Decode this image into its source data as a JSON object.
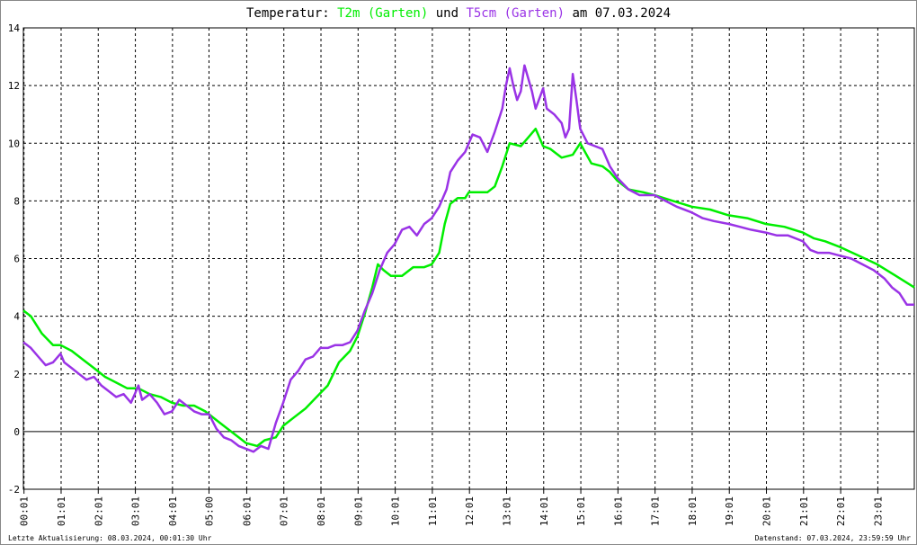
{
  "title": {
    "prefix": "Temperatur: ",
    "series1": "T2m (Garten)",
    "mid": " und ",
    "series2": "T5cm (Garten)",
    "suffix": " am 07.03.2024"
  },
  "colors": {
    "t2m": "#00ee00",
    "t5cm": "#9a33e6",
    "grid": "#000000",
    "zero": "#000000"
  },
  "footer": {
    "left": "Letzte Aktualisierung: 08.03.2024, 00:01:30 Uhr",
    "right": "Datenstand: 07.03.2024, 23:59:59 Uhr"
  },
  "chart_data": {
    "type": "line",
    "title": "Temperatur: T2m (Garten) und T5cm (Garten) am 07.03.2024",
    "xlim": [
      0,
      24
    ],
    "ylim": [
      -2,
      14
    ],
    "yticks": [
      -2,
      0,
      2,
      4,
      6,
      8,
      10,
      12,
      14
    ],
    "xticks": [
      {
        "t": 0.0167,
        "label": "00:01"
      },
      {
        "t": 1.0167,
        "label": "01:01"
      },
      {
        "t": 2.0167,
        "label": "02:01"
      },
      {
        "t": 3.0167,
        "label": "03:01"
      },
      {
        "t": 4.0167,
        "label": "04:01"
      },
      {
        "t": 5.0,
        "label": "05:00"
      },
      {
        "t": 6.0167,
        "label": "06:01"
      },
      {
        "t": 7.0167,
        "label": "07:01"
      },
      {
        "t": 8.0167,
        "label": "08:01"
      },
      {
        "t": 9.0167,
        "label": "09:01"
      },
      {
        "t": 10.0167,
        "label": "10:01"
      },
      {
        "t": 11.0167,
        "label": "11:01"
      },
      {
        "t": 12.0167,
        "label": "12:01"
      },
      {
        "t": 13.0167,
        "label": "13:01"
      },
      {
        "t": 14.0167,
        "label": "14:01"
      },
      {
        "t": 15.0167,
        "label": "15:01"
      },
      {
        "t": 16.0167,
        "label": "16:01"
      },
      {
        "t": 17.0167,
        "label": "17:01"
      },
      {
        "t": 18.0167,
        "label": "18:01"
      },
      {
        "t": 19.0167,
        "label": "19:01"
      },
      {
        "t": 20.0167,
        "label": "20:01"
      },
      {
        "t": 21.0167,
        "label": "21:01"
      },
      {
        "t": 22.0167,
        "label": "22:01"
      },
      {
        "t": 23.0167,
        "label": "23:01"
      }
    ],
    "grid": true,
    "series": [
      {
        "name": "T2m (Garten)",
        "color": "#00ee00",
        "points": [
          [
            0.0,
            4.2
          ],
          [
            0.2,
            4.0
          ],
          [
            0.5,
            3.4
          ],
          [
            0.8,
            3.0
          ],
          [
            1.0,
            3.0
          ],
          [
            1.3,
            2.8
          ],
          [
            1.6,
            2.5
          ],
          [
            1.9,
            2.2
          ],
          [
            2.2,
            1.9
          ],
          [
            2.5,
            1.7
          ],
          [
            2.8,
            1.5
          ],
          [
            3.1,
            1.5
          ],
          [
            3.4,
            1.3
          ],
          [
            3.7,
            1.2
          ],
          [
            4.0,
            1.0
          ],
          [
            4.3,
            0.9
          ],
          [
            4.6,
            0.9
          ],
          [
            4.9,
            0.7
          ],
          [
            5.2,
            0.4
          ],
          [
            5.5,
            0.1
          ],
          [
            5.8,
            -0.2
          ],
          [
            6.0,
            -0.4
          ],
          [
            6.3,
            -0.5
          ],
          [
            6.5,
            -0.3
          ],
          [
            6.8,
            -0.2
          ],
          [
            7.0,
            0.2
          ],
          [
            7.3,
            0.5
          ],
          [
            7.6,
            0.8
          ],
          [
            7.9,
            1.2
          ],
          [
            8.2,
            1.6
          ],
          [
            8.5,
            2.4
          ],
          [
            8.8,
            2.8
          ],
          [
            9.0,
            3.3
          ],
          [
            9.2,
            4.1
          ],
          [
            9.4,
            5.0
          ],
          [
            9.55,
            5.8
          ],
          [
            9.7,
            5.6
          ],
          [
            9.9,
            5.4
          ],
          [
            10.2,
            5.4
          ],
          [
            10.5,
            5.7
          ],
          [
            10.8,
            5.7
          ],
          [
            11.0,
            5.8
          ],
          [
            11.2,
            6.2
          ],
          [
            11.35,
            7.2
          ],
          [
            11.5,
            7.9
          ],
          [
            11.7,
            8.1
          ],
          [
            11.9,
            8.1
          ],
          [
            12.0,
            8.3
          ],
          [
            12.3,
            8.3
          ],
          [
            12.5,
            8.3
          ],
          [
            12.7,
            8.5
          ],
          [
            12.9,
            9.2
          ],
          [
            13.1,
            10.0
          ],
          [
            13.4,
            9.9
          ],
          [
            13.6,
            10.2
          ],
          [
            13.8,
            10.5
          ],
          [
            14.0,
            9.9
          ],
          [
            14.2,
            9.8
          ],
          [
            14.5,
            9.5
          ],
          [
            14.8,
            9.6
          ],
          [
            15.0,
            10.0
          ],
          [
            15.3,
            9.3
          ],
          [
            15.6,
            9.2
          ],
          [
            15.8,
            9.0
          ],
          [
            16.0,
            8.7
          ],
          [
            16.3,
            8.4
          ],
          [
            16.7,
            8.3
          ],
          [
            17.0,
            8.2
          ],
          [
            17.5,
            8.0
          ],
          [
            18.0,
            7.8
          ],
          [
            18.5,
            7.7
          ],
          [
            19.0,
            7.5
          ],
          [
            19.5,
            7.4
          ],
          [
            20.0,
            7.2
          ],
          [
            20.5,
            7.1
          ],
          [
            21.0,
            6.9
          ],
          [
            21.3,
            6.7
          ],
          [
            21.6,
            6.6
          ],
          [
            22.0,
            6.4
          ],
          [
            22.5,
            6.1
          ],
          [
            23.0,
            5.8
          ],
          [
            23.5,
            5.4
          ],
          [
            24.0,
            5.0
          ]
        ]
      },
      {
        "name": "T5cm (Garten)",
        "color": "#9a33e6",
        "points": [
          [
            0.0,
            3.1
          ],
          [
            0.2,
            2.9
          ],
          [
            0.4,
            2.6
          ],
          [
            0.6,
            2.3
          ],
          [
            0.8,
            2.4
          ],
          [
            1.0,
            2.7
          ],
          [
            1.1,
            2.4
          ],
          [
            1.3,
            2.2
          ],
          [
            1.5,
            2.0
          ],
          [
            1.7,
            1.8
          ],
          [
            1.9,
            1.9
          ],
          [
            2.1,
            1.6
          ],
          [
            2.3,
            1.4
          ],
          [
            2.5,
            1.2
          ],
          [
            2.7,
            1.3
          ],
          [
            2.9,
            1.0
          ],
          [
            3.0,
            1.3
          ],
          [
            3.1,
            1.6
          ],
          [
            3.2,
            1.1
          ],
          [
            3.4,
            1.3
          ],
          [
            3.6,
            1.0
          ],
          [
            3.8,
            0.6
          ],
          [
            4.0,
            0.7
          ],
          [
            4.2,
            1.1
          ],
          [
            4.4,
            0.9
          ],
          [
            4.6,
            0.7
          ],
          [
            4.8,
            0.6
          ],
          [
            5.0,
            0.6
          ],
          [
            5.2,
            0.1
          ],
          [
            5.4,
            -0.2
          ],
          [
            5.6,
            -0.3
          ],
          [
            5.8,
            -0.5
          ],
          [
            6.0,
            -0.6
          ],
          [
            6.2,
            -0.7
          ],
          [
            6.4,
            -0.5
          ],
          [
            6.6,
            -0.6
          ],
          [
            6.8,
            0.3
          ],
          [
            7.0,
            1.0
          ],
          [
            7.2,
            1.8
          ],
          [
            7.4,
            2.1
          ],
          [
            7.6,
            2.5
          ],
          [
            7.8,
            2.6
          ],
          [
            8.0,
            2.9
          ],
          [
            8.2,
            2.9
          ],
          [
            8.4,
            3.0
          ],
          [
            8.6,
            3.0
          ],
          [
            8.8,
            3.1
          ],
          [
            9.0,
            3.5
          ],
          [
            9.2,
            4.2
          ],
          [
            9.4,
            4.8
          ],
          [
            9.6,
            5.6
          ],
          [
            9.8,
            6.2
          ],
          [
            10.0,
            6.5
          ],
          [
            10.2,
            7.0
          ],
          [
            10.4,
            7.1
          ],
          [
            10.6,
            6.8
          ],
          [
            10.8,
            7.2
          ],
          [
            11.0,
            7.4
          ],
          [
            11.2,
            7.8
          ],
          [
            11.4,
            8.4
          ],
          [
            11.5,
            9.0
          ],
          [
            11.7,
            9.4
          ],
          [
            11.9,
            9.7
          ],
          [
            12.1,
            10.3
          ],
          [
            12.3,
            10.2
          ],
          [
            12.5,
            9.7
          ],
          [
            12.7,
            10.4
          ],
          [
            12.9,
            11.2
          ],
          [
            13.0,
            12.0
          ],
          [
            13.1,
            12.6
          ],
          [
            13.2,
            12.0
          ],
          [
            13.3,
            11.5
          ],
          [
            13.4,
            11.8
          ],
          [
            13.5,
            12.7
          ],
          [
            13.7,
            11.8
          ],
          [
            13.8,
            11.2
          ],
          [
            14.0,
            11.9
          ],
          [
            14.1,
            11.2
          ],
          [
            14.3,
            11.0
          ],
          [
            14.5,
            10.7
          ],
          [
            14.6,
            10.2
          ],
          [
            14.7,
            10.5
          ],
          [
            14.8,
            12.4
          ],
          [
            14.9,
            11.5
          ],
          [
            15.0,
            10.5
          ],
          [
            15.2,
            10.0
          ],
          [
            15.4,
            9.9
          ],
          [
            15.6,
            9.8
          ],
          [
            15.8,
            9.2
          ],
          [
            16.0,
            8.8
          ],
          [
            16.3,
            8.4
          ],
          [
            16.6,
            8.2
          ],
          [
            17.0,
            8.2
          ],
          [
            17.3,
            8.0
          ],
          [
            17.6,
            7.8
          ],
          [
            18.0,
            7.6
          ],
          [
            18.3,
            7.4
          ],
          [
            18.6,
            7.3
          ],
          [
            19.0,
            7.2
          ],
          [
            19.3,
            7.1
          ],
          [
            19.6,
            7.0
          ],
          [
            20.0,
            6.9
          ],
          [
            20.3,
            6.8
          ],
          [
            20.6,
            6.8
          ],
          [
            21.0,
            6.6
          ],
          [
            21.2,
            6.3
          ],
          [
            21.4,
            6.2
          ],
          [
            21.7,
            6.2
          ],
          [
            22.0,
            6.1
          ],
          [
            22.3,
            6.0
          ],
          [
            22.6,
            5.8
          ],
          [
            22.9,
            5.6
          ],
          [
            23.2,
            5.3
          ],
          [
            23.4,
            5.0
          ],
          [
            23.6,
            4.8
          ],
          [
            23.7,
            4.6
          ],
          [
            23.8,
            4.4
          ],
          [
            24.0,
            4.4
          ]
        ]
      }
    ]
  }
}
